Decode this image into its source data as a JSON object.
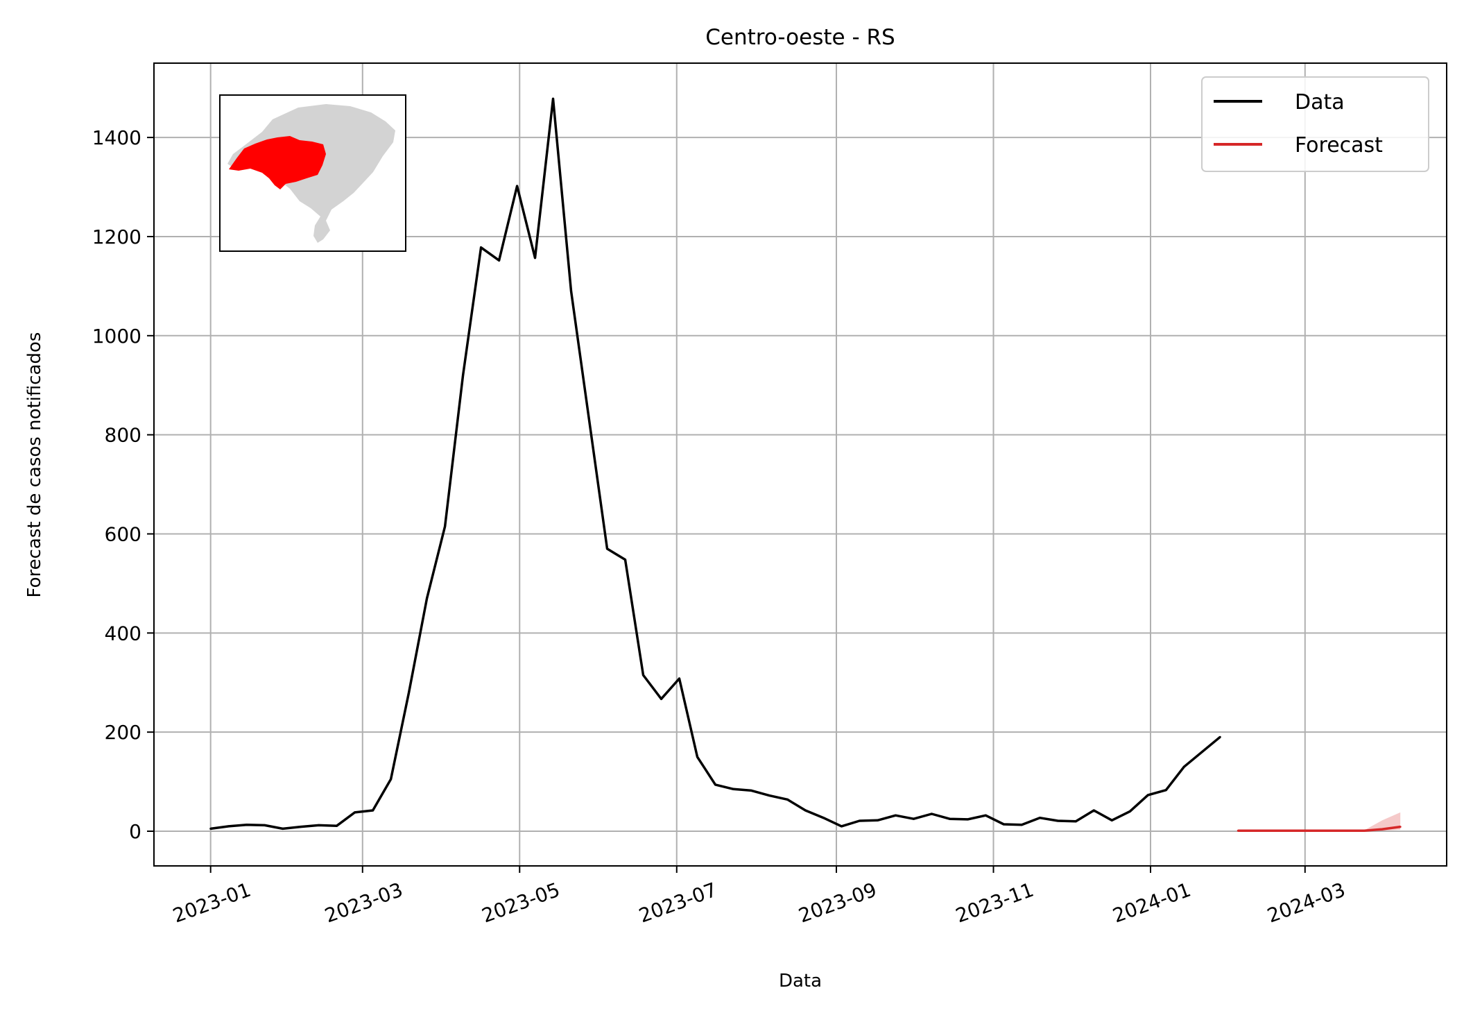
{
  "chart_data": {
    "type": "line",
    "title": "Centro-oeste - RS",
    "xlabel": "Data",
    "ylabel": "Forecast de casos notificados",
    "xlim": [
      "2022-12-10",
      "2024-04-25"
    ],
    "ylim": [
      -70,
      1550
    ],
    "grid": true,
    "legend_position": "top-right",
    "x_ticks": [
      "2023-01-01",
      "2023-03-01",
      "2023-05-01",
      "2023-07-01",
      "2023-09-01",
      "2023-11-01",
      "2024-01-01",
      "2024-03-01"
    ],
    "x_tick_labels": [
      "2023-01",
      "2023-03",
      "2023-05",
      "2023-07",
      "2023-09",
      "2023-11",
      "2024-01",
      "2024-03"
    ],
    "y_ticks": [
      0,
      200,
      400,
      600,
      800,
      1000,
      1200,
      1400
    ],
    "y_tick_labels": [
      "0",
      "200",
      "400",
      "600",
      "800",
      "1000",
      "1200",
      "1400"
    ],
    "series": [
      {
        "name": "Data",
        "color": "#000000",
        "x": [
          "2023-01-01",
          "2023-01-08",
          "2023-01-15",
          "2023-01-22",
          "2023-01-29",
          "2023-02-05",
          "2023-02-12",
          "2023-02-19",
          "2023-02-26",
          "2023-03-05",
          "2023-03-12",
          "2023-03-19",
          "2023-03-26",
          "2023-04-02",
          "2023-04-09",
          "2023-04-16",
          "2023-04-23",
          "2023-04-30",
          "2023-05-07",
          "2023-05-14",
          "2023-05-21",
          "2023-05-28",
          "2023-06-04",
          "2023-06-11",
          "2023-06-18",
          "2023-06-25",
          "2023-07-02",
          "2023-07-09",
          "2023-07-16",
          "2023-07-23",
          "2023-07-30",
          "2023-08-06",
          "2023-08-13",
          "2023-08-20",
          "2023-08-27",
          "2023-09-03",
          "2023-09-10",
          "2023-09-17",
          "2023-09-24",
          "2023-10-01",
          "2023-10-08",
          "2023-10-15",
          "2023-10-22",
          "2023-10-29",
          "2023-11-05",
          "2023-11-12",
          "2023-11-19",
          "2023-11-26",
          "2023-12-03",
          "2023-12-10",
          "2023-12-17",
          "2023-12-24",
          "2023-12-31",
          "2024-01-07",
          "2024-01-14",
          "2024-01-21",
          "2024-01-28"
        ],
        "values": [
          5,
          10,
          13,
          12,
          5,
          9,
          12,
          11,
          38,
          42,
          105,
          280,
          470,
          615,
          920,
          1178,
          1152,
          1302,
          1157,
          1478,
          1090,
          830,
          570,
          548,
          315,
          267,
          308,
          150,
          94,
          85,
          82,
          72,
          64,
          42,
          27,
          10,
          21,
          22,
          32,
          25,
          35,
          25,
          24,
          32,
          14,
          13,
          27,
          21,
          20,
          42,
          22,
          40,
          73,
          83,
          130,
          160,
          190
        ]
      },
      {
        "name": "Forecast",
        "color": "#d62728",
        "x": [
          "2024-02-04",
          "2024-02-11",
          "2024-02-18",
          "2024-02-25",
          "2024-03-03",
          "2024-03-10",
          "2024-03-17",
          "2024-03-24",
          "2024-03-31",
          "2024-04-07"
        ],
        "values": [
          1,
          1,
          1,
          1,
          1,
          1,
          1,
          1,
          4,
          9
        ],
        "band_upper": [
          1,
          1,
          1,
          1,
          1,
          1,
          1,
          2,
          22,
          38
        ],
        "band_lower": [
          0,
          0,
          0,
          0,
          0,
          0,
          0,
          0,
          1,
          3
        ]
      }
    ],
    "inset": {
      "description_name": "rio-grande-do-sul-map",
      "region_color": "#ff0000",
      "state_color": "#d3d3d3"
    }
  }
}
